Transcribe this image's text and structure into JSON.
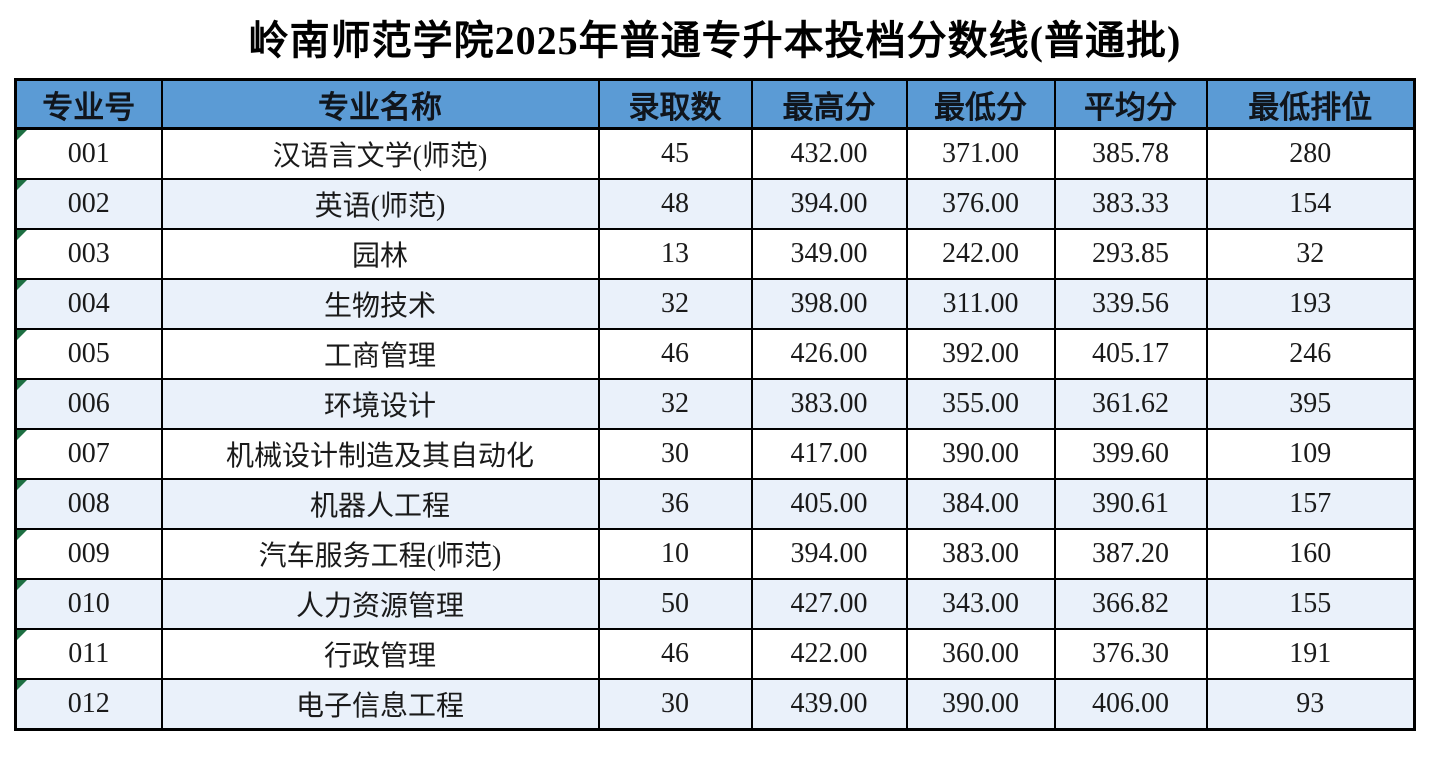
{
  "title": "岭南师范学院2025年普通专升本投档分数线(普通批)",
  "table": {
    "columns": [
      "专业号",
      "专业名称",
      "录取数",
      "最高分",
      "最低分",
      "平均分",
      "最低排位"
    ],
    "column_keys": [
      "major-code",
      "major-name",
      "admitted-count",
      "highest-score",
      "lowest-score",
      "average-score",
      "lowest-rank"
    ],
    "rows": [
      [
        "001",
        "汉语言文学(师范)",
        "45",
        "432.00",
        "371.00",
        "385.78",
        "280"
      ],
      [
        "002",
        "英语(师范)",
        "48",
        "394.00",
        "376.00",
        "383.33",
        "154"
      ],
      [
        "003",
        "园林",
        "13",
        "349.00",
        "242.00",
        "293.85",
        "32"
      ],
      [
        "004",
        "生物技术",
        "32",
        "398.00",
        "311.00",
        "339.56",
        "193"
      ],
      [
        "005",
        "工商管理",
        "46",
        "426.00",
        "392.00",
        "405.17",
        "246"
      ],
      [
        "006",
        "环境设计",
        "32",
        "383.00",
        "355.00",
        "361.62",
        "395"
      ],
      [
        "007",
        "机械设计制造及其自动化",
        "30",
        "417.00",
        "390.00",
        "399.60",
        "109"
      ],
      [
        "008",
        "机器人工程",
        "36",
        "405.00",
        "384.00",
        "390.61",
        "157"
      ],
      [
        "009",
        "汽车服务工程(师范)",
        "10",
        "394.00",
        "383.00",
        "387.20",
        "160"
      ],
      [
        "010",
        "人力资源管理",
        "50",
        "427.00",
        "343.00",
        "366.82",
        "155"
      ],
      [
        "011",
        "行政管理",
        "46",
        "422.00",
        "360.00",
        "376.30",
        "191"
      ],
      [
        "012",
        "电子信息工程",
        "30",
        "439.00",
        "390.00",
        "406.00",
        "93"
      ]
    ]
  },
  "icons": {
    "cell_corner_flag": "green-corner-flag-icon"
  },
  "colors": {
    "header_bg": "#5B9BD5",
    "row_even_bg": "#EAF1FA",
    "row_odd_bg": "#FFFFFF",
    "border": "#000000",
    "flag_green": "#1D6F42",
    "text": "#1A1A1A"
  }
}
